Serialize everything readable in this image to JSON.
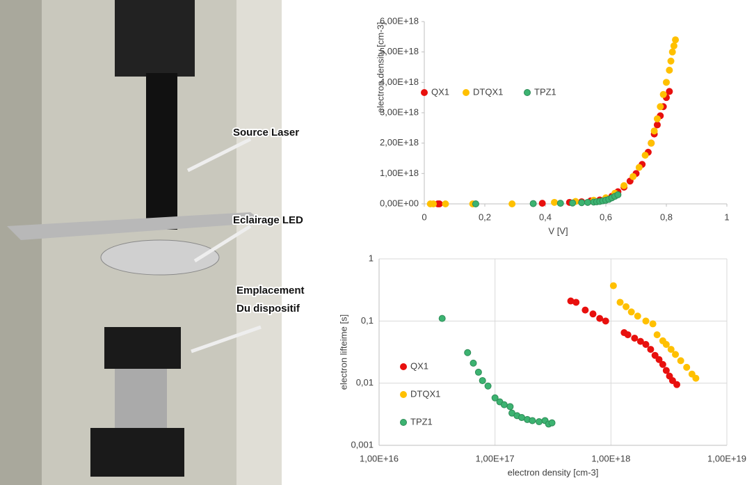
{
  "photo": {
    "labels": [
      "Source Laser",
      "Eclairage LED",
      "Emplacement",
      "Du dispositif"
    ]
  },
  "chart_data": [
    {
      "type": "scatter",
      "xlabel": "V [V]",
      "ylabel": "electron density [cm-3]",
      "xlim": [
        0,
        1
      ],
      "xticks": [
        0,
        {
          "value": 0.2,
          "label": "0,2"
        },
        {
          "value": 0.4,
          "label": "0,4"
        },
        {
          "value": 0.6,
          "label": "0,6"
        },
        {
          "value": 0.8,
          "label": "0,8"
        },
        1
      ],
      "ylim": [
        0,
        6e+18
      ],
      "yticks": [
        {
          "value": 0,
          "label": "0,00E+00"
        },
        {
          "value": 1e+18,
          "label": "1,00E+18"
        },
        {
          "value": 2e+18,
          "label": "2,00E+18"
        },
        {
          "value": 3e+18,
          "label": "3,00E+18"
        },
        {
          "value": 4e+18,
          "label": "4,00E+18"
        },
        {
          "value": 5e+18,
          "label": "5,00E+18"
        },
        {
          "value": 6e+18,
          "label": "6,00E+18"
        }
      ],
      "grid": false,
      "legend": "horizontal",
      "series": [
        {
          "name": "QX1",
          "color": "#e8100e",
          "x": [
            0.045,
            0.05,
            0.39,
            0.48,
            0.52,
            0.55,
            0.58,
            0.6,
            0.62,
            0.64,
            0.66,
            0.68,
            0.7,
            0.72,
            0.74,
            0.75,
            0.76,
            0.77,
            0.78,
            0.79,
            0.8,
            0.81
          ],
          "values": [
            0,
            0,
            2e+16,
            5e+16,
            7e+16,
            1e+17,
            1.3e+17,
            1.7e+17,
            2.5e+17,
            4e+17,
            5.5e+17,
            7.5e+17,
            1e+18,
            1.3e+18,
            1.7e+18,
            2e+18,
            2.3e+18,
            2.6e+18,
            2.9e+18,
            3.2e+18,
            3.5e+18,
            3.7e+18
          ]
        },
        {
          "name": "DTQX1",
          "color": "#ffc000",
          "x": [
            0.02,
            0.03,
            0.07,
            0.16,
            0.29,
            0.43,
            0.5,
            0.56,
            0.6,
            0.63,
            0.66,
            0.69,
            0.71,
            0.73,
            0.75,
            0.76,
            0.77,
            0.78,
            0.79,
            0.8,
            0.81,
            0.815,
            0.82,
            0.825,
            0.83
          ],
          "values": [
            0,
            0,
            0,
            0,
            0,
            5e+16,
            8e+16,
            1.2e+17,
            2e+17,
            3.5e+17,
            6e+17,
            9e+17,
            1.2e+18,
            1.6e+18,
            2e+18,
            2.4e+18,
            2.8e+18,
            3.2e+18,
            3.6e+18,
            4e+18,
            4.4e+18,
            4.7e+18,
            5e+18,
            5.2e+18,
            5.4e+18
          ]
        },
        {
          "name": "TPZ1",
          "color": "#3cb371",
          "x": [
            0.17,
            0.36,
            0.45,
            0.49,
            0.52,
            0.54,
            0.56,
            0.57,
            0.58,
            0.59,
            0.6,
            0.61,
            0.62,
            0.63,
            0.64
          ],
          "values": [
            0,
            1e+16,
            2e+16,
            3e+16,
            4e+16,
            5e+16,
            6e+16,
            7e+16,
            8e+16,
            1e+17,
            1.2e+17,
            1.5e+17,
            2e+17,
            2.5e+17,
            3e+17
          ]
        }
      ]
    },
    {
      "type": "scatter",
      "xlabel": "electron density [cm-3]",
      "ylabel": "electron lifteime [s]",
      "xscale": "log",
      "yscale": "log",
      "xlim": [
        1e+16,
        1e+19
      ],
      "xticks": [
        {
          "value": 1e+16,
          "label": "1,00E+16"
        },
        {
          "value": 1e+17,
          "label": "1,00E+17"
        },
        {
          "value": 1e+18,
          "label": "1,00E+18"
        },
        {
          "value": 1e+19,
          "label": "1,00E+19"
        }
      ],
      "ylim": [
        0.001,
        1
      ],
      "yticks": [
        {
          "value": 0.001,
          "label": "0,001"
        },
        {
          "value": 0.01,
          "label": "0,01"
        },
        {
          "value": 0.1,
          "label": "0,1"
        },
        1
      ],
      "grid": true,
      "legend": "vertical",
      "series": [
        {
          "name": "QX1",
          "color": "#e8100e",
          "x": [
            4.5e+17,
            5e+17,
            6e+17,
            7e+17,
            8e+17,
            9e+17,
            1.3e+18,
            1.4e+18,
            1.6e+18,
            1.8e+18,
            2e+18,
            2.2e+18,
            2.4e+18,
            2.6e+18,
            2.8e+18,
            3e+18,
            3.2e+18,
            3.4e+18,
            3.7e+18
          ],
          "values": [
            0.21,
            0.2,
            0.15,
            0.13,
            0.11,
            0.1,
            0.065,
            0.06,
            0.053,
            0.047,
            0.042,
            0.035,
            0.028,
            0.024,
            0.02,
            0.016,
            0.013,
            0.011,
            0.0095
          ]
        },
        {
          "name": "DTQX1",
          "color": "#ffc000",
          "x": [
            1.05e+18,
            1.2e+18,
            1.35e+18,
            1.5e+18,
            1.7e+18,
            2e+18,
            2.3e+18,
            2.5e+18,
            2.8e+18,
            3e+18,
            3.3e+18,
            3.6e+18,
            4e+18,
            4.5e+18,
            5e+18,
            5.4e+18
          ],
          "values": [
            0.37,
            0.2,
            0.17,
            0.14,
            0.12,
            0.1,
            0.09,
            0.06,
            0.048,
            0.042,
            0.035,
            0.029,
            0.023,
            0.018,
            0.014,
            0.012
          ]
        },
        {
          "name": "TPZ1",
          "color": "#3cb371",
          "x": [
            3.5e+16,
            5.8e+16,
            6.5e+16,
            7.2e+16,
            7.8e+16,
            8.7e+16,
            1e+17,
            1.1e+17,
            1.2e+17,
            1.35e+17,
            1.4e+17,
            1.55e+17,
            1.7e+17,
            1.9e+17,
            2.1e+17,
            2.4e+17,
            2.7e+17,
            2.9e+17,
            3.1e+17
          ],
          "values": [
            0.11,
            0.031,
            0.021,
            0.015,
            0.011,
            0.009,
            0.0058,
            0.005,
            0.0045,
            0.0042,
            0.0033,
            0.003,
            0.0028,
            0.0026,
            0.0025,
            0.0024,
            0.0025,
            0.0022,
            0.0023
          ]
        }
      ]
    }
  ]
}
